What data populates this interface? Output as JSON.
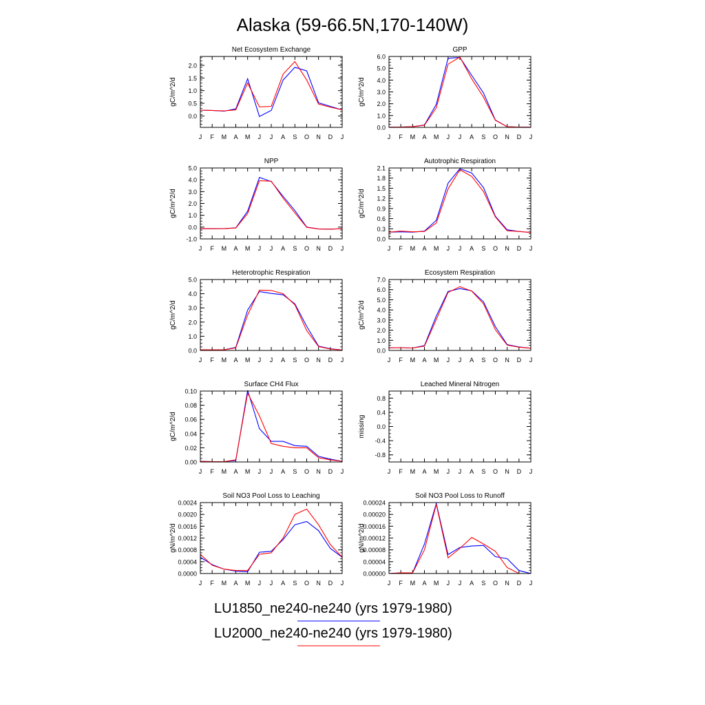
{
  "page": {
    "title": "Alaska (59-66.5N,170-140W)"
  },
  "months": [
    "J",
    "F",
    "M",
    "A",
    "M",
    "J",
    "J",
    "A",
    "S",
    "O",
    "N",
    "D",
    "J"
  ],
  "colors": {
    "LU1850": "#0000ff",
    "LU2000": "#ff0000",
    "axis": "#000000"
  },
  "legend": [
    {
      "label": "LU1850_ne240-ne240 (yrs 1979-1980)",
      "color": "#0000ff"
    },
    {
      "label": "LU2000_ne240-ne240 (yrs 1979-1980)",
      "color": "#ff0000"
    }
  ],
  "chart_data": [
    {
      "type": "line",
      "title": "Net Ecosystem Exchange",
      "ylabel": "gC/m^2/d",
      "ylim": [
        -0.45,
        2.35
      ],
      "yticks": [
        0.0,
        0.5,
        1.0,
        1.5,
        2.0
      ],
      "yticklabels": [
        "0.0",
        "0.5",
        "1.0",
        "1.5",
        "2.0"
      ],
      "series": [
        {
          "name": "LU1850_ne240-ne240 (yrs 1979-1980)",
          "values": [
            0.23,
            0.22,
            0.19,
            0.28,
            1.47,
            -0.02,
            0.22,
            1.42,
            1.92,
            1.78,
            0.52,
            0.38,
            0.24
          ]
        },
        {
          "name": "LU2000_ne240-ne240 (yrs 1979-1980)",
          "values": [
            0.23,
            0.22,
            0.2,
            0.24,
            1.3,
            0.36,
            0.38,
            1.65,
            2.15,
            1.42,
            0.47,
            0.35,
            0.24
          ]
        }
      ]
    },
    {
      "type": "line",
      "title": "GPP",
      "ylabel": "gC/m^2/d",
      "ylim": [
        0,
        6.0
      ],
      "yticks": [
        0,
        1,
        2,
        3,
        4,
        5,
        6
      ],
      "yticklabels": [
        "0.0",
        "1.0",
        "2.0",
        "3.0",
        "4.0",
        "5.0",
        "6.0"
      ],
      "series": [
        {
          "name": "LU1850_ne240-ne240 (yrs 1979-1980)",
          "values": [
            0.02,
            0.03,
            0.06,
            0.2,
            1.95,
            5.85,
            5.92,
            4.4,
            2.9,
            0.62,
            0.05,
            0.02,
            0.02
          ]
        },
        {
          "name": "LU2000_ne240-ne240 (yrs 1979-1980)",
          "values": [
            0.02,
            0.03,
            0.05,
            0.18,
            1.65,
            5.35,
            5.95,
            4.1,
            2.55,
            0.6,
            0.05,
            0.02,
            0.02
          ]
        }
      ]
    },
    {
      "type": "line",
      "title": "NPP",
      "ylabel": "gC/m^2/d",
      "ylim": [
        -1.0,
        5.0
      ],
      "yticks": [
        -1,
        0,
        1,
        2,
        3,
        4,
        5
      ],
      "yticklabels": [
        "-1.0",
        "0.0",
        "1.0",
        "2.0",
        "3.0",
        "4.0",
        "5.0"
      ],
      "series": [
        {
          "name": "LU1850_ne240-ne240 (yrs 1979-1980)",
          "values": [
            -0.14,
            -0.14,
            -0.13,
            -0.06,
            1.35,
            4.2,
            3.85,
            2.6,
            1.4,
            0.0,
            -0.16,
            -0.17,
            -0.14
          ]
        },
        {
          "name": "LU2000_ne240-ne240 (yrs 1979-1980)",
          "values": [
            -0.14,
            -0.14,
            -0.13,
            -0.08,
            1.15,
            3.92,
            3.88,
            2.45,
            1.2,
            -0.02,
            -0.16,
            -0.17,
            -0.14
          ]
        }
      ]
    },
    {
      "type": "line",
      "title": "Autotrophic Respiration",
      "ylabel": "gC/m^2/d",
      "ylim": [
        0,
        2.1
      ],
      "yticks": [
        0,
        0.3,
        0.6,
        0.9,
        1.2,
        1.5,
        1.8,
        2.1
      ],
      "yticklabels": [
        "0.0",
        "0.3",
        "0.6",
        "0.9",
        "1.2",
        "1.5",
        "1.8",
        "2.1"
      ],
      "series": [
        {
          "name": "LU1850_ne240-ne240 (yrs 1979-1980)",
          "values": [
            0.2,
            0.21,
            0.2,
            0.23,
            0.55,
            1.65,
            2.08,
            1.95,
            1.52,
            0.67,
            0.27,
            0.22,
            0.19
          ]
        },
        {
          "name": "LU2000_ne240-ne240 (yrs 1979-1980)",
          "values": [
            0.2,
            0.23,
            0.21,
            0.22,
            0.47,
            1.48,
            2.05,
            1.85,
            1.4,
            0.65,
            0.24,
            0.22,
            0.19
          ]
        }
      ]
    },
    {
      "type": "line",
      "title": "Heterotrophic Respiration",
      "ylabel": "gC/m^2/d",
      "ylim": [
        0,
        5.0
      ],
      "yticks": [
        0,
        1,
        2,
        3,
        4,
        5
      ],
      "yticklabels": [
        "0.0",
        "1.0",
        "2.0",
        "3.0",
        "4.0",
        "5.0"
      ],
      "series": [
        {
          "name": "LU1850_ne240-ne240 (yrs 1979-1980)",
          "values": [
            0.05,
            0.04,
            0.04,
            0.22,
            2.85,
            4.15,
            4.02,
            3.92,
            3.28,
            1.7,
            0.3,
            0.12,
            0.03
          ]
        },
        {
          "name": "LU2000_ne240-ne240 (yrs 1979-1980)",
          "values": [
            0.05,
            0.04,
            0.04,
            0.18,
            2.5,
            4.25,
            4.23,
            4.0,
            3.22,
            1.4,
            0.27,
            0.1,
            0.03
          ]
        }
      ]
    },
    {
      "type": "line",
      "title": "Ecosystem Respiration",
      "ylabel": "gC/m^2/d",
      "ylim": [
        0,
        7.0
      ],
      "yticks": [
        0,
        1,
        2,
        3,
        4,
        5,
        6,
        7
      ],
      "yticklabels": [
        "0.0",
        "1.0",
        "2.0",
        "3.0",
        "4.0",
        "5.0",
        "6.0",
        "7.0"
      ],
      "series": [
        {
          "name": "LU1850_ne240-ne240 (yrs 1979-1980)",
          "values": [
            0.26,
            0.27,
            0.24,
            0.48,
            3.4,
            5.82,
            6.1,
            5.88,
            4.8,
            2.35,
            0.58,
            0.35,
            0.22
          ]
        },
        {
          "name": "LU2000_ne240-ne240 (yrs 1979-1980)",
          "values": [
            0.26,
            0.27,
            0.24,
            0.42,
            3.05,
            5.72,
            6.3,
            5.85,
            4.6,
            2.05,
            0.52,
            0.32,
            0.22
          ]
        }
      ]
    },
    {
      "type": "line",
      "title": "Surface CH4 Flux",
      "ylabel": "gC/m^2/d",
      "ylim": [
        0,
        0.1
      ],
      "yticks": [
        0,
        0.02,
        0.04,
        0.06,
        0.08,
        0.1
      ],
      "yticklabels": [
        "0.00",
        "0.02",
        "0.04",
        "0.06",
        "0.08",
        "0.10"
      ],
      "series": [
        {
          "name": "LU1850_ne240-ne240 (yrs 1979-1980)",
          "values": [
            0.001,
            0.0005,
            0.0005,
            0.002,
            0.101,
            0.047,
            0.029,
            0.029,
            0.023,
            0.022,
            0.008,
            0.004,
            0.001
          ]
        },
        {
          "name": "LU2000_ne240-ne240 (yrs 1979-1980)",
          "values": [
            0.001,
            0.0005,
            0.0005,
            0.003,
            0.097,
            0.065,
            0.026,
            0.022,
            0.02,
            0.02,
            0.006,
            0.003,
            0.001
          ]
        }
      ]
    },
    {
      "type": "line",
      "title": "Leached Mineral Nitrogen",
      "ylabel": "missing",
      "ylim": [
        -1.0,
        1.0
      ],
      "yticks": [
        -0.8,
        -0.4,
        0,
        0.4,
        0.8
      ],
      "yticklabels": [
        "-0.8",
        "-0.4",
        "0.0",
        "0.4",
        "0.8"
      ],
      "series": []
    },
    {
      "type": "line",
      "title": "Soil NO3 Pool Loss to Leaching",
      "ylabel": "gN/m^2/d",
      "ylim": [
        0,
        0.0024
      ],
      "yticks": [
        0,
        0.0004,
        0.0008,
        0.0012,
        0.0016,
        0.002,
        0.0024
      ],
      "yticklabels": [
        "0.0000",
        "0.0004",
        "0.0008",
        "0.0012",
        "0.0016",
        "0.0020",
        "0.0024"
      ],
      "series": [
        {
          "name": "LU1850_ne240-ne240 (yrs 1979-1980)",
          "values": [
            0.00055,
            0.0003,
            0.00015,
            8e-05,
            6e-05,
            0.00072,
            0.00075,
            0.00115,
            0.00165,
            0.00176,
            0.00145,
            0.00085,
            0.00055
          ]
        },
        {
          "name": "LU2000_ne240-ne240 (yrs 1979-1980)",
          "values": [
            0.00065,
            0.00028,
            0.00015,
            0.0001,
            0.0001,
            0.00065,
            0.0007,
            0.0012,
            0.002,
            0.00218,
            0.00165,
            0.00098,
            0.00055
          ]
        }
      ]
    },
    {
      "type": "line",
      "title": "Soil NO3 Pool Loss to Runoff",
      "ylabel": "gN/m^2/d",
      "ylim": [
        0,
        0.00024
      ],
      "yticks": [
        0,
        4e-05,
        8e-05,
        0.00012,
        0.00016,
        0.0002,
        0.00024
      ],
      "yticklabels": [
        "0.00000",
        "0.00004",
        "0.00008",
        "0.00012",
        "0.00016",
        "0.00020",
        "0.00024"
      ],
      "series": [
        {
          "name": "LU1850_ne240-ne240 (yrs 1979-1980)",
          "values": [
            0.0,
            2e-06,
            2e-06,
            0.0001,
            0.000237,
            6.4e-05,
            8.8e-05,
            9.3e-05,
            9.5e-05,
            5.7e-05,
            5e-05,
            1e-05,
            0.0
          ]
        },
        {
          "name": "LU2000_ne240-ne240 (yrs 1979-1980)",
          "values": [
            0.0,
            2e-06,
            2e-06,
            8e-05,
            0.000234,
            5.3e-05,
            8.5e-05,
            0.000122,
            0.0001,
            7.5e-05,
            2e-05,
            0.0,
            0.0
          ]
        }
      ]
    }
  ]
}
